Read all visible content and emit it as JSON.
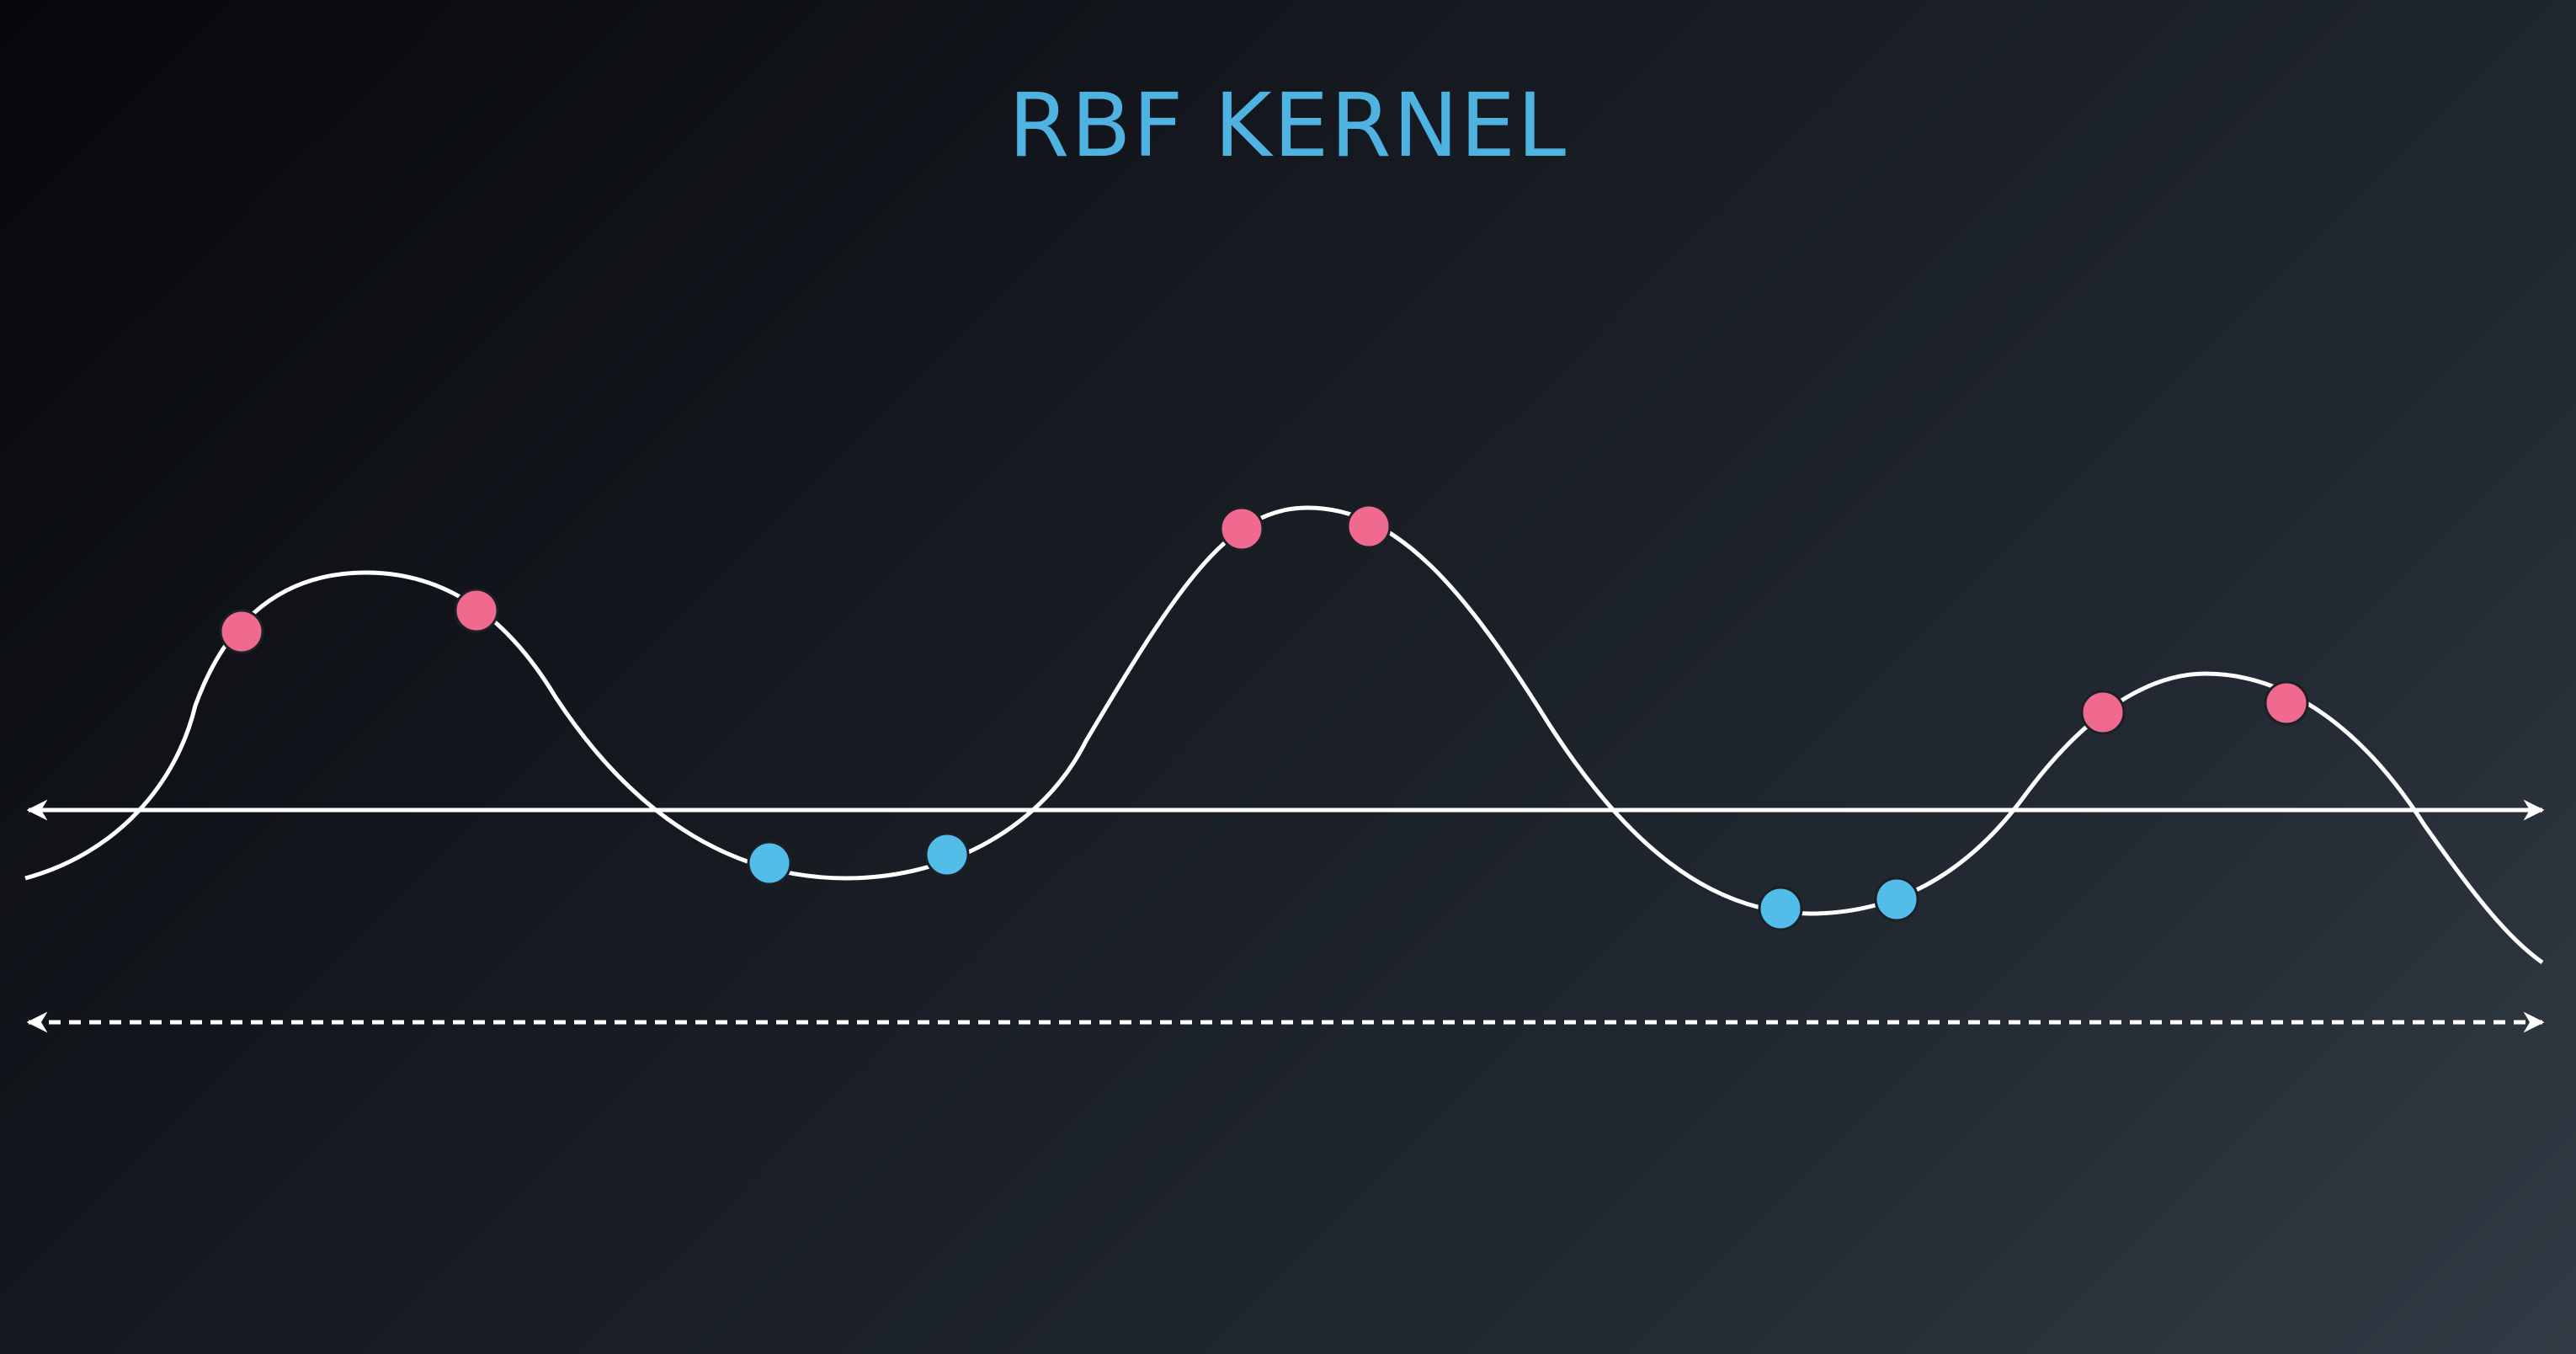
{
  "title": "RBF KERNEL",
  "colors": {
    "title": "#4fb3e2",
    "curve": "#ffffff",
    "axis": "#ffffff",
    "positive_point": "#f06a90",
    "negative_point": "#52bde9",
    "point_outline": "#1b1f26"
  },
  "points": [
    {
      "class": "positive",
      "color": "#f06a90"
    },
    {
      "class": "positive",
      "color": "#f06a90"
    },
    {
      "class": "negative",
      "color": "#52bde9"
    },
    {
      "class": "negative",
      "color": "#52bde9"
    },
    {
      "class": "positive",
      "color": "#f06a90"
    },
    {
      "class": "positive",
      "color": "#f06a90"
    },
    {
      "class": "negative",
      "color": "#52bde9"
    },
    {
      "class": "negative",
      "color": "#52bde9"
    },
    {
      "class": "positive",
      "color": "#f06a90"
    },
    {
      "class": "positive",
      "color": "#f06a90"
    }
  ]
}
